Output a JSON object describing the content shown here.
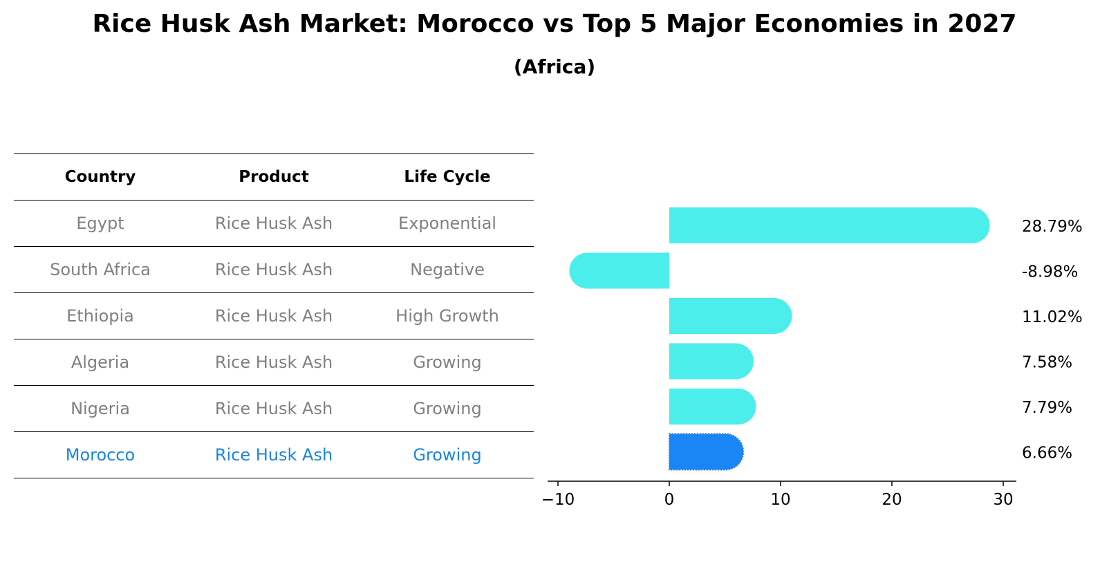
{
  "title": "Rice Husk Ash Market: Morocco vs Top 5 Major Economies in 2027",
  "subtitle": "(Africa)",
  "table": {
    "headers": [
      "Country",
      "Product",
      "Life Cycle"
    ],
    "rows": [
      {
        "country": "Egypt",
        "product": "Rice Husk Ash",
        "life_cycle": "Exponential"
      },
      {
        "country": "South Africa",
        "product": "Rice Husk Ash",
        "life_cycle": "Negative"
      },
      {
        "country": "Ethiopia",
        "product": "Rice Husk Ash",
        "life_cycle": "High Growth"
      },
      {
        "country": "Algeria",
        "product": "Rice Husk Ash",
        "life_cycle": "Growing"
      },
      {
        "country": "Nigeria",
        "product": "Rice Husk Ash",
        "life_cycle": "Growing"
      },
      {
        "country": "Morocco",
        "product": "Rice Husk Ash",
        "life_cycle": "Growing"
      }
    ]
  },
  "chart_data": {
    "type": "bar",
    "orientation": "horizontal",
    "categories": [
      "Egypt",
      "South Africa",
      "Ethiopia",
      "Algeria",
      "Nigeria",
      "Morocco"
    ],
    "values": [
      28.79,
      -8.98,
      11.02,
      7.58,
      7.79,
      6.66
    ],
    "value_labels": [
      "28.79%",
      "-8.98%",
      "11.02%",
      "7.58%",
      "7.79%",
      "6.66%"
    ],
    "highlight": "Morocco",
    "xlim": [
      -11,
      31
    ],
    "xticks": [
      -10,
      0,
      10,
      20,
      30
    ],
    "xtick_labels": [
      "−10",
      "0",
      "10",
      "20",
      "30"
    ],
    "colors": {
      "bar": "#4beeea",
      "highlight": "#1a85f5"
    },
    "grid": false
  }
}
